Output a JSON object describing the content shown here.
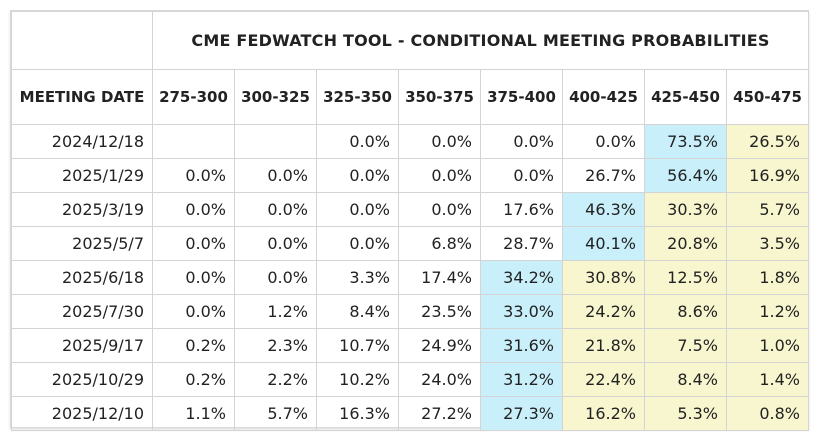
{
  "title": "CME FEDWATCH TOOL - CONDITIONAL MEETING PROBABILITIES",
  "headers": [
    "MEETING DATE",
    "275-300",
    "300-325",
    "325-350",
    "350-375",
    "375-400",
    "400-425",
    "425-450",
    "450-475"
  ],
  "colors": {
    "highlight_blue": "#c8effa",
    "highlight_yellow": "#f7f6cf"
  },
  "rows": [
    {
      "date": "2024/12/18",
      "values": [
        "",
        "",
        "0.0%",
        "0.0%",
        "0.0%",
        "0.0%",
        "73.5%",
        "26.5%"
      ],
      "shade": [
        "",
        "",
        "",
        "",
        "",
        "",
        "blue",
        "yellow"
      ]
    },
    {
      "date": "2025/1/29",
      "values": [
        "0.0%",
        "0.0%",
        "0.0%",
        "0.0%",
        "0.0%",
        "26.7%",
        "56.4%",
        "16.9%"
      ],
      "shade": [
        "",
        "",
        "",
        "",
        "",
        "",
        "blue",
        "yellow"
      ]
    },
    {
      "date": "2025/3/19",
      "values": [
        "0.0%",
        "0.0%",
        "0.0%",
        "0.0%",
        "17.6%",
        "46.3%",
        "30.3%",
        "5.7%"
      ],
      "shade": [
        "",
        "",
        "",
        "",
        "",
        "blue",
        "yellow",
        "yellow"
      ]
    },
    {
      "date": "2025/5/7",
      "values": [
        "0.0%",
        "0.0%",
        "0.0%",
        "6.8%",
        "28.7%",
        "40.1%",
        "20.8%",
        "3.5%"
      ],
      "shade": [
        "",
        "",
        "",
        "",
        "",
        "blue",
        "yellow",
        "yellow"
      ]
    },
    {
      "date": "2025/6/18",
      "values": [
        "0.0%",
        "0.0%",
        "3.3%",
        "17.4%",
        "34.2%",
        "30.8%",
        "12.5%",
        "1.8%"
      ],
      "shade": [
        "",
        "",
        "",
        "",
        "blue",
        "yellow",
        "yellow",
        "yellow"
      ]
    },
    {
      "date": "2025/7/30",
      "values": [
        "0.0%",
        "1.2%",
        "8.4%",
        "23.5%",
        "33.0%",
        "24.2%",
        "8.6%",
        "1.2%"
      ],
      "shade": [
        "",
        "",
        "",
        "",
        "blue",
        "yellow",
        "yellow",
        "yellow"
      ]
    },
    {
      "date": "2025/9/17",
      "values": [
        "0.2%",
        "2.3%",
        "10.7%",
        "24.9%",
        "31.6%",
        "21.8%",
        "7.5%",
        "1.0%"
      ],
      "shade": [
        "",
        "",
        "",
        "",
        "blue",
        "yellow",
        "yellow",
        "yellow"
      ]
    },
    {
      "date": "2025/10/29",
      "values": [
        "0.2%",
        "2.2%",
        "10.2%",
        "24.0%",
        "31.2%",
        "22.4%",
        "8.4%",
        "1.4%"
      ],
      "shade": [
        "",
        "",
        "",
        "",
        "blue",
        "yellow",
        "yellow",
        "yellow"
      ]
    },
    {
      "date": "2025/12/10",
      "values": [
        "1.1%",
        "5.7%",
        "16.3%",
        "27.2%",
        "27.3%",
        "16.2%",
        "5.3%",
        "0.8%"
      ],
      "shade": [
        "",
        "",
        "",
        "",
        "blue",
        "yellow",
        "yellow",
        "yellow"
      ]
    }
  ]
}
